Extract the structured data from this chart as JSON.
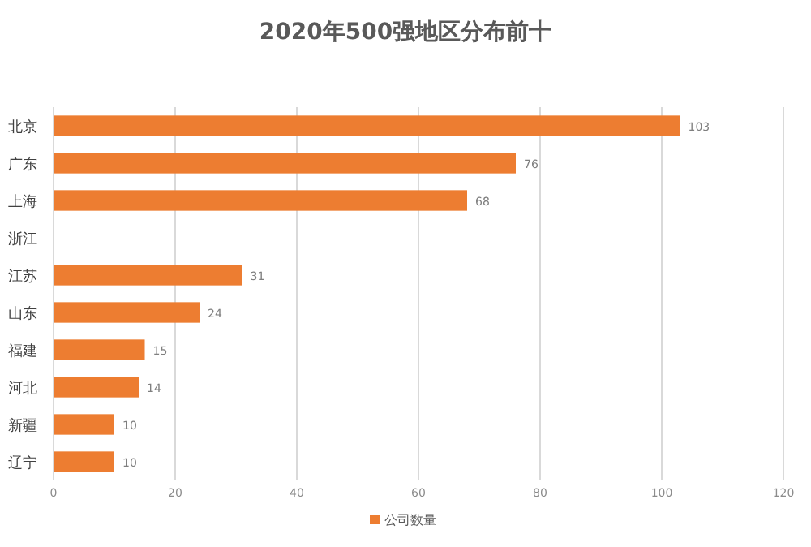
{
  "chart_data": {
    "type": "bar",
    "orientation": "horizontal",
    "title": "2020年500强地区分布前十",
    "categories": [
      "北京",
      "广东",
      "上海",
      "浙江",
      "江苏",
      "山东",
      "福建",
      "河北",
      "新疆",
      "辽宁"
    ],
    "series": [
      {
        "name": "公司数量",
        "color": "#ed7d31",
        "values": [
          103,
          76,
          68,
          null,
          31,
          24,
          15,
          14,
          10,
          10
        ]
      }
    ],
    "value_labels": [
      "103",
      "76",
      "68",
      null,
      "31",
      "24",
      "15",
      "14",
      "10",
      "10"
    ],
    "xlim": [
      0,
      120
    ],
    "xticks": [
      0,
      20,
      40,
      60,
      80,
      100,
      120
    ],
    "grid": "x",
    "legend": "bottom"
  }
}
